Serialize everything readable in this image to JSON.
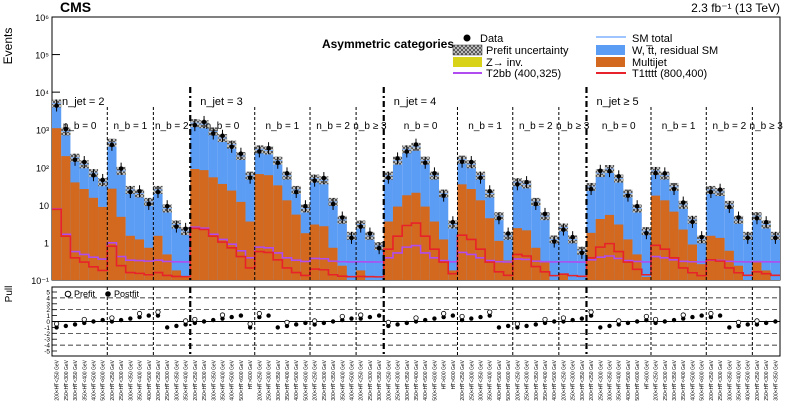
{
  "header": {
    "experiment": "CMS",
    "luminosity": "2.3 fb⁻¹ (13 TeV)"
  },
  "chart_data": {
    "type": "bar",
    "title": "Asymmetric categories",
    "ylabel": "Events",
    "yscale": "log",
    "ylim": [
      0.1,
      1000000
    ],
    "y_ticks": [
      "10⁻¹",
      "1",
      "10",
      "10²",
      "10³",
      "10⁴",
      "10⁵",
      "10⁶"
    ],
    "legend": {
      "placement": "top",
      "entries": [
        {
          "label": "Data",
          "kind": "marker",
          "color": "#000000"
        },
        {
          "label": "SM total",
          "kind": "line",
          "color": "#7fb2ff"
        },
        {
          "label": "Prefit uncertainty",
          "kind": "hatch",
          "color": "#555555"
        },
        {
          "label": "W, t̅t, residual SM",
          "kind": "fill",
          "color": "#5b9cf5"
        },
        {
          "label": "Z→ inv.",
          "kind": "fill",
          "color": "#d8d219"
        },
        {
          "label": "Multijet",
          "kind": "fill",
          "color": "#d2691e"
        },
        {
          "label": "T2bb (400,325)",
          "kind": "line",
          "color": "#b04cf0"
        },
        {
          "label": "T1tttt (800,400)",
          "kind": "line",
          "color": "#e8222a"
        }
      ]
    },
    "njet_labels": [
      "n_jet = 2",
      "n_jet = 3",
      "n_jet = 4",
      "n_jet ≥ 5"
    ],
    "groups": [
      {
        "njet": "2",
        "nb": "n_b = 0",
        "values": [
          5000,
          900,
          180,
          120,
          70,
          40
        ]
      },
      {
        "njet": "2",
        "nb": "n_b = 1",
        "values": [
          450,
          80,
          25,
          20,
          12
        ]
      },
      {
        "njet": "2",
        "nb": "n_b = 2",
        "values": [
          25,
          8,
          3,
          2
        ]
      },
      {
        "njet": "3",
        "nb": "n_b = 0",
        "values": [
          1500,
          1400,
          900,
          600,
          400,
          200,
          60
        ]
      },
      {
        "njet": "3",
        "nb": "n_b = 1",
        "values": [
          300,
          280,
          150,
          60,
          25,
          8
        ]
      },
      {
        "njet": "3",
        "nb": "n_b = 2",
        "values": [
          50,
          45,
          12,
          4,
          1.5
        ]
      },
      {
        "njet": "3",
        "nb": "n_b ≥ 3",
        "values": [
          3,
          1.5,
          0.8
        ]
      },
      {
        "njet": "4",
        "nb": "n_b = 0",
        "values": [
          60,
          150,
          300,
          350,
          150,
          60,
          20,
          3
        ]
      },
      {
        "njet": "4",
        "nb": "n_b = 1",
        "values": [
          160,
          120,
          60,
          20,
          5,
          1.5
        ]
      },
      {
        "njet": "4",
        "nb": "n_b = 2",
        "values": [
          40,
          35,
          12,
          5,
          1.2
        ]
      },
      {
        "njet": "4",
        "nb": "n_b ≥ 3",
        "values": [
          2.5,
          1.2,
          0.6
        ]
      },
      {
        "njet": "≥ 5",
        "nb": "n_b = 0",
        "values": [
          30,
          70,
          90,
          50,
          20,
          8,
          2
        ]
      },
      {
        "njet": "≥ 5",
        "nb": "n_b = 1",
        "values": [
          80,
          60,
          30,
          10,
          4,
          1.2
        ]
      },
      {
        "njet": "≥ 5",
        "nb": "n_b = 2",
        "values": [
          25,
          22,
          10,
          4,
          1.5
        ]
      },
      {
        "njet": "≥ 5",
        "nb": "n_b ≥ 3",
        "values": [
          5,
          3,
          1.5
        ]
      }
    ],
    "x_tick_labels": [
      "200<H̸T<250 GeV",
      "250<H̸T<300 GeV",
      "300<H̸T<350 GeV",
      "350<H̸T<400 GeV",
      "400<H̸T<500 GeV",
      "500<H̸T<600 GeV",
      "H̸T>600 GeV"
    ],
    "pull_panel": {
      "ylabel": "Pull",
      "y_ticks": [
        "5",
        "4",
        "3",
        "2",
        "1",
        "0",
        "-1",
        "-2",
        "-3",
        "-4",
        "-5"
      ],
      "legend": [
        "Prefit",
        "Postfit"
      ]
    }
  }
}
